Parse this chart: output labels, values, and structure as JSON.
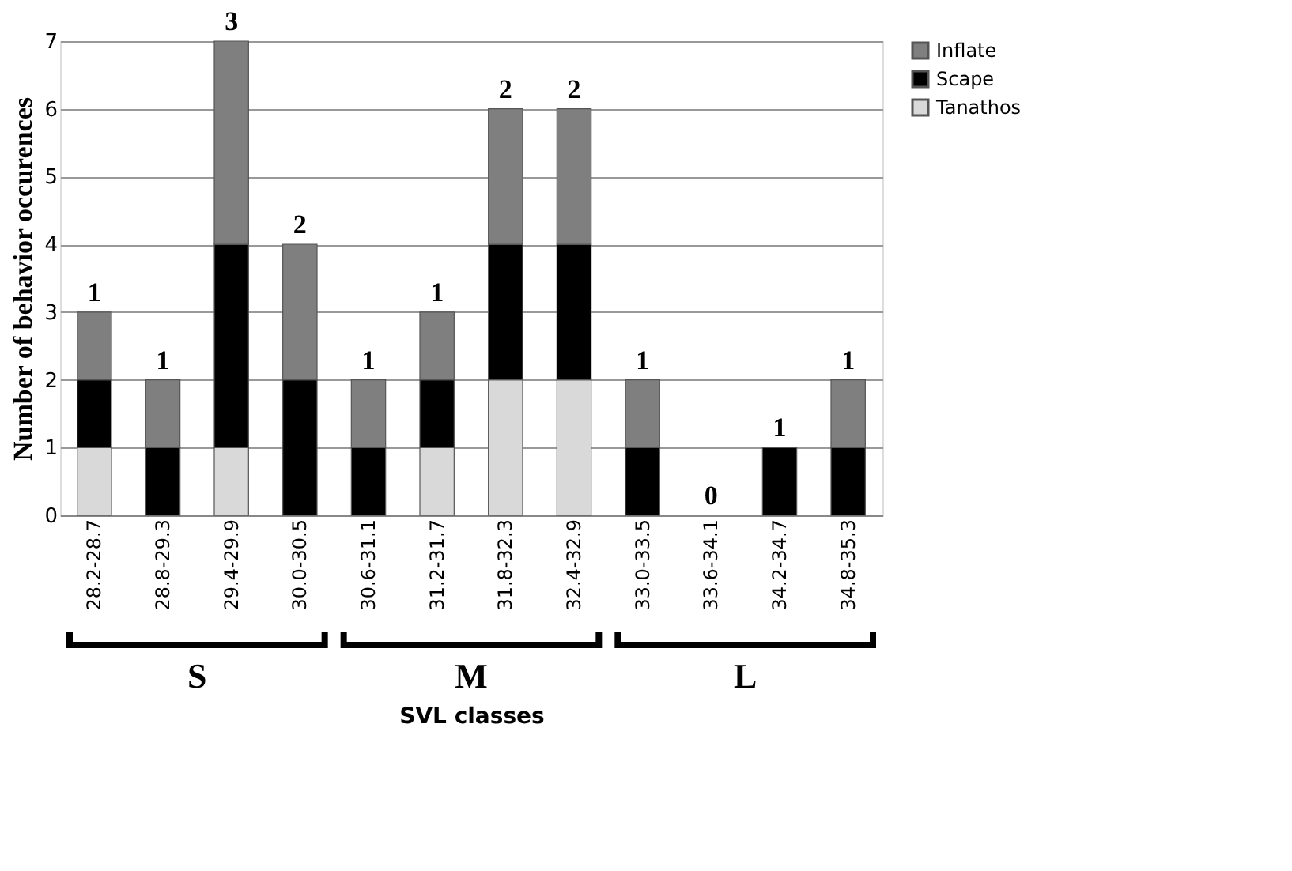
{
  "chart_data": {
    "type": "bar",
    "stacked": true,
    "xlabel": "SVL classes",
    "ylabel": "Number of behavior occurences",
    "categories": [
      "28.2-28.7",
      "28.8-29.3",
      "29.4-29.9",
      "30.0-30.5",
      "30.6-31.1",
      "31.2-31.7",
      "31.8-32.3",
      "32.4-32.9",
      "33.0-33.5",
      "33.6-34.1",
      "34.2-34.7",
      "34.8-35.3"
    ],
    "series": [
      {
        "name": "Tanathos",
        "color": "#d9d9d9",
        "values": [
          1,
          0,
          1,
          0,
          0,
          1,
          2,
          2,
          0,
          0,
          0,
          0
        ]
      },
      {
        "name": "Scape",
        "color": "#000000",
        "values": [
          1,
          1,
          3,
          2,
          1,
          1,
          2,
          2,
          1,
          0,
          1,
          1
        ]
      },
      {
        "name": "Inflate",
        "color": "#7f7f7f",
        "values": [
          1,
          1,
          3,
          2,
          1,
          1,
          2,
          2,
          1,
          0,
          0,
          1
        ]
      }
    ],
    "ylim": [
      0,
      7
    ],
    "yticks": [
      0,
      1,
      2,
      3,
      4,
      5,
      6,
      7
    ],
    "grid": "y",
    "legend": "right",
    "annotations": [
      {
        "text": "1",
        "x": "28.2-28.7",
        "y": 3
      },
      {
        "text": "1",
        "x": "28.8-29.3",
        "y": 2
      },
      {
        "text": "3",
        "x": "29.4-29.9",
        "y": 7
      },
      {
        "text": "2",
        "x": "30.0-30.5",
        "y": 4
      },
      {
        "text": "1",
        "x": "30.6-31.1",
        "y": 2
      },
      {
        "text": "1",
        "x": "31.2-31.7",
        "y": 3
      },
      {
        "text": "2",
        "x": "31.8-32.3",
        "y": 6
      },
      {
        "text": "2",
        "x": "32.4-32.9",
        "y": 6
      },
      {
        "text": "1",
        "x": "33.0-33.5",
        "y": 2
      },
      {
        "text": "0",
        "x": "33.6-34.1",
        "y": 0
      },
      {
        "text": "1",
        "x": "34.2-34.7",
        "y": 1
      },
      {
        "text": "1",
        "x": "34.8-35.3",
        "y": 2
      },
      "S",
      "M",
      "L"
    ]
  }
}
